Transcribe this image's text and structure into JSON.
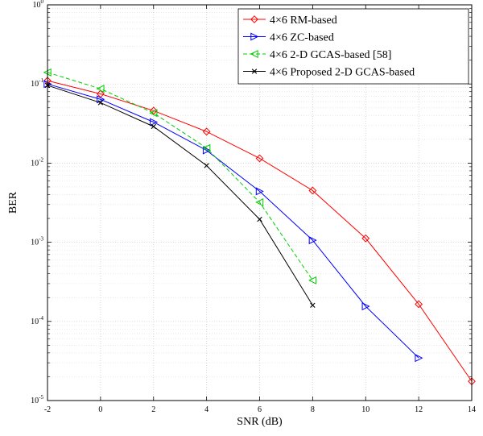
{
  "chart_data": {
    "type": "line",
    "xlabel": "SNR (dB)",
    "ylabel": "BER",
    "xlim": [
      -2,
      14
    ],
    "ylim": [
      1e-05,
      1
    ],
    "yscale": "log",
    "grid": true,
    "legend_position": "top-right",
    "x_ticks": [
      "-2",
      "0",
      "2",
      "4",
      "6",
      "8",
      "10",
      "12",
      "14"
    ],
    "y_ticks": [
      {
        "base": "10",
        "exp": "-5"
      },
      {
        "base": "10",
        "exp": "-4"
      },
      {
        "base": "10",
        "exp": "-3"
      },
      {
        "base": "10",
        "exp": "-2"
      },
      {
        "base": "10",
        "exp": "-1"
      },
      {
        "base": "10",
        "exp": "0"
      }
    ],
    "series": [
      {
        "name": "4×6 RM-based",
        "color": "#ff0000",
        "marker": "diamond",
        "dash": "solid",
        "x": [
          -2,
          0,
          2,
          4,
          6,
          8,
          10,
          12,
          14
        ],
        "y": [
          0.11,
          0.075,
          0.046,
          0.025,
          0.0115,
          0.0045,
          0.00112,
          0.000165,
          1.75e-05
        ]
      },
      {
        "name": "4×6 ZC-based",
        "color": "#0000ff",
        "marker": "triangle-right",
        "dash": "solid",
        "x": [
          -2,
          0,
          2,
          4,
          6,
          8,
          10,
          12
        ],
        "y": [
          0.1,
          0.064,
          0.033,
          0.0145,
          0.0044,
          0.00106,
          0.000155,
          3.45e-05
        ]
      },
      {
        "name": "4×6 2-D GCAS-based [58]",
        "color": "#00cc00",
        "marker": "triangle-left",
        "dash": "dashed",
        "x": [
          -2,
          0,
          2,
          4,
          6,
          8
        ],
        "y": [
          0.14,
          0.087,
          0.043,
          0.0155,
          0.0032,
          0.00033
        ]
      },
      {
        "name": "4×6 Proposed 2-D GCAS-based",
        "color": "#000000",
        "marker": "x",
        "dash": "solid",
        "x": [
          -2,
          0,
          2,
          4,
          6,
          8
        ],
        "y": [
          0.096,
          0.058,
          0.029,
          0.0093,
          0.00195,
          0.00016
        ]
      }
    ]
  }
}
